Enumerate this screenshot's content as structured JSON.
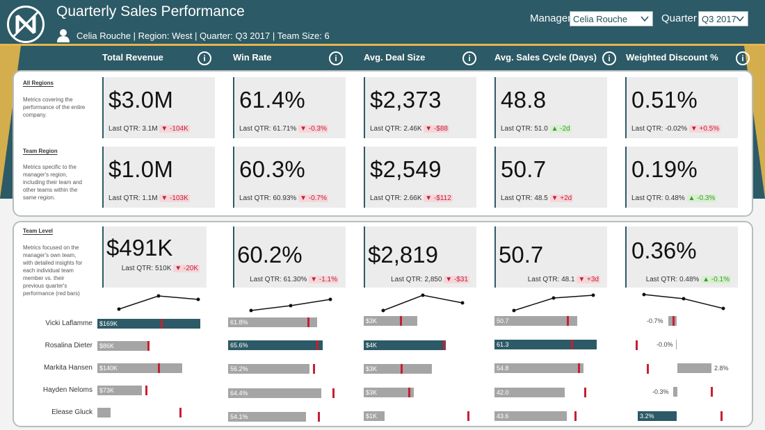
{
  "header": {
    "title": "Quarterly Sales Performance",
    "subtitle": "Celia Rouche | Region: West | Quarter: Q3 2017 | Team Size: 6",
    "manager_label": "Manager",
    "manager_value": "Celia Rouche",
    "quarter_label": "Quarter",
    "quarter_value": "Q3 2017"
  },
  "colors": {
    "teal": "#2c5a66",
    "gold": "#e7b64a",
    "bad": "#c0223a",
    "good": "#3e9a32",
    "bar_grey": "#a5a5a5"
  },
  "icons": {
    "logo": "nm-logo",
    "user": "user-icon",
    "info": "info-icon",
    "chevron": "chevron-down-icon"
  },
  "metrics": [
    "Total Revenue",
    "Win Rate",
    "Avg. Deal Size",
    "Avg. Sales Cycle (Days)",
    "Weighted Discount %"
  ],
  "info_glyph": "i",
  "sections": {
    "all_regions": {
      "title": "All Regions",
      "desc": "Metrics covering the performance of the entire company.",
      "cards": [
        {
          "value": "$3.0M",
          "prefix": "Last QTR: ",
          "last": "3.1M",
          "delta": "▼ -104K",
          "trend": "bad"
        },
        {
          "value": "61.4%",
          "prefix": "Last QTR: ",
          "last": "61.71%",
          "delta": "▼ -0.3%",
          "trend": "bad"
        },
        {
          "value": "$2,373",
          "prefix": "Last QTR: ",
          "last": "2.46K",
          "delta": "▼ -$88",
          "trend": "bad"
        },
        {
          "value": "48.8",
          "prefix": "Last QTR: ",
          "last": "51.0",
          "delta": "▲ -2d",
          "trend": "good"
        },
        {
          "value": "0.51%",
          "prefix": "Last QTR: ",
          "last": "-0.02%",
          "delta": "▼ +0.5%",
          "trend": "bad"
        }
      ]
    },
    "team_region": {
      "title": "Team Region",
      "desc": "Metrics specific to the manager's region, including their team and other teams within the same region.",
      "cards": [
        {
          "value": "$1.0M",
          "prefix": "Last QTR: ",
          "last": "1.1M",
          "delta": "▼ -103K",
          "trend": "bad"
        },
        {
          "value": "60.3%",
          "prefix": "Last QTR: ",
          "last": "60.93%",
          "delta": "▼ -0.7%",
          "trend": "bad"
        },
        {
          "value": "$2,549",
          "prefix": "Last QTR: ",
          "last": "2.66K",
          "delta": "▼ -$112",
          "trend": "bad"
        },
        {
          "value": "50.7",
          "prefix": "Last QTR: ",
          "last": "48.5",
          "delta": "▼ +2d",
          "trend": "bad"
        },
        {
          "value": "0.19%",
          "prefix": "Last QTR: ",
          "last": "0.48%",
          "delta": "▲ -0.3%",
          "trend": "good"
        }
      ]
    },
    "team_level": {
      "title": "Team Level",
      "desc": "Metrics focused on the manager's own team, with detailed insights for each individual team member vs. their previous quarter's performance (red bars)",
      "cards": [
        {
          "value": "$491K",
          "prefix": "Last QTR: ",
          "last": "510K",
          "delta": "▼ -20K",
          "trend": "bad"
        },
        {
          "value": "60.2%",
          "prefix": "Last QTR: ",
          "last": "61.30%",
          "delta": "▼ -1.1%",
          "trend": "bad"
        },
        {
          "value": "$2,819",
          "prefix": "Last QTR: ",
          "last": "2,850",
          "delta": "▼ -$31",
          "trend": "bad"
        },
        {
          "value": "50.7",
          "prefix": "Last QTR: ",
          "last": "48.1",
          "delta": "▼ +3d",
          "trend": "bad"
        },
        {
          "value": "0.36%",
          "prefix": "Last QTR: ",
          "last": "0.48%",
          "delta": "▲ -0.1%",
          "trend": "good"
        }
      ]
    }
  },
  "team_members": [
    "Vicki Laflamme",
    "Rosalina Dieter",
    "Markita Hansen",
    "Hayden Neloms",
    "Elease Gluck"
  ],
  "member_bars": [
    {
      "labels": [
        "$169K",
        "$86K",
        "$140K",
        "$73K",
        ""
      ]
    },
    {
      "labels": [
        "61.8%",
        "65.6%",
        "56.2%",
        "64.4%",
        "54.1%"
      ]
    },
    {
      "labels": [
        "$3K",
        "$4K",
        "$3K",
        "$3K",
        "$1K"
      ]
    },
    {
      "labels": [
        "50.7",
        "61.3",
        "54.8",
        "42.0",
        "43.6"
      ]
    },
    {
      "labels": [
        "-0.7%",
        "-0.0%",
        "2.8%",
        "-0.3%",
        "3.2%"
      ]
    }
  ]
}
